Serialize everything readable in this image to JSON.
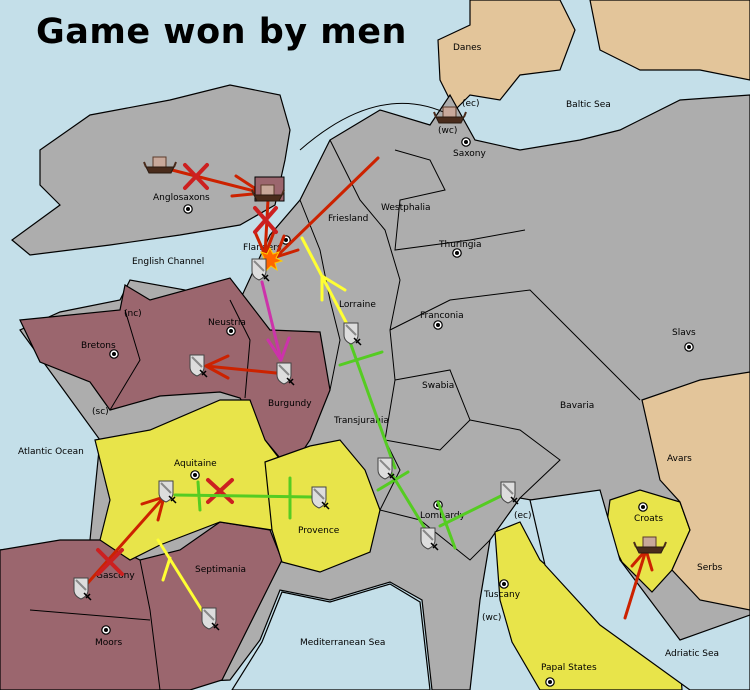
{
  "title": "Game won by men",
  "colors": {
    "sea": "#c4dfe9",
    "neutral": "#adadad",
    "power_maroon": "#9b666e",
    "power_yellow": "#e8e44a",
    "impassable_tan": "#e3c59a",
    "order_move_failed": "#cc2200",
    "order_support": "#ffff33",
    "order_hold_support": "#55cc22",
    "order_retreat": "#cc33aa",
    "dislodged_burst": "#ff6600"
  },
  "territories": {
    "danes": "Danes",
    "baltic_sea": "Baltic Sea",
    "saxony": "Saxony",
    "saxony_ec": "(ec)",
    "saxony_wc": "(wc)",
    "anglosaxons": "Anglosaxons",
    "westphalia": "Westphalia",
    "friesland": "Friesland",
    "flanders": "Flanders",
    "thuringia": "Thuringia",
    "english_channel": "English Channel",
    "neustria": "Neustria",
    "neustria_nc": "(nc)",
    "neustria_sc": "(sc)",
    "bretons": "Bretons",
    "lorraine": "Lorraine",
    "franconia": "Franconia",
    "slavs": "Slavs",
    "swabia": "Swabia",
    "burgundy": "Burgundy",
    "bavaria": "Bavaria",
    "transjurania": "Transjurania",
    "atlantic_ocean": "Atlantic Ocean",
    "aquitaine": "Aquitaine",
    "avars": "Avars",
    "provence": "Provence",
    "lombardy": "Lombardy",
    "lombardy_ec": "(ec)",
    "croats": "Croats",
    "gascony": "Gascony",
    "septimania": "Septimania",
    "serbs": "Serbs",
    "tuscany": "Tuscany",
    "tuscany_wc": "(wc)",
    "moors": "Moors",
    "mediterranean_sea": "Mediterranean Sea",
    "adriatic_sea": "Adriatic Sea",
    "papal_states": "Papal States"
  },
  "units": [
    {
      "type": "fleet-icon",
      "location": "Anglosaxons"
    },
    {
      "type": "fleet-icon",
      "location": "North Sea coast"
    },
    {
      "type": "fleet-icon",
      "location": "Saxony (wc)"
    },
    {
      "type": "fleet-icon",
      "location": "Croats"
    },
    {
      "type": "army-icon",
      "location": "Flanders"
    },
    {
      "type": "army-icon",
      "location": "Neustria"
    },
    {
      "type": "army-icon",
      "location": "Burgundy"
    },
    {
      "type": "army-icon",
      "location": "Lorraine"
    },
    {
      "type": "army-icon",
      "location": "Aquitaine"
    },
    {
      "type": "army-icon",
      "location": "Provence"
    },
    {
      "type": "army-icon",
      "location": "Transjurania"
    },
    {
      "type": "army-icon",
      "location": "Lombardy"
    },
    {
      "type": "army-icon",
      "location": "Lombardy (ec)"
    },
    {
      "type": "army-icon",
      "location": "Gascony"
    },
    {
      "type": "army-icon",
      "location": "Septimania"
    }
  ]
}
